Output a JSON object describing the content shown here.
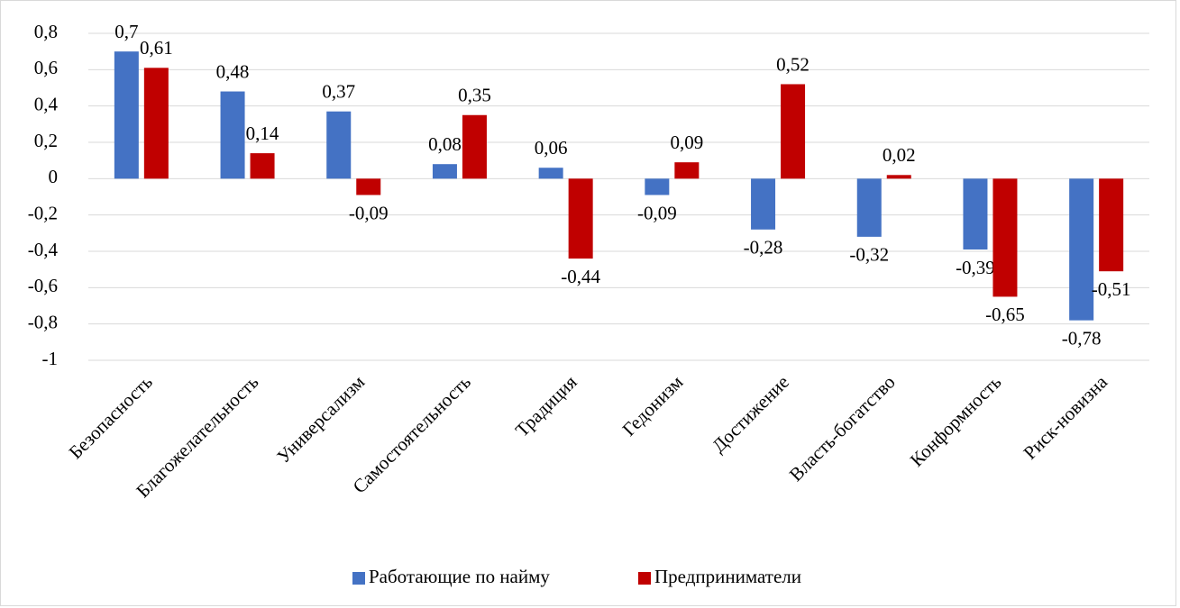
{
  "chart_data": {
    "type": "bar",
    "categories": [
      "Безопасность",
      "Благожелательность",
      "Универсализм",
      "Самостоятельность",
      "Традиция",
      "Гедонизм",
      "Достижение",
      "Власть-богатство",
      "Конформность",
      "Риск-новизна"
    ],
    "series": [
      {
        "name": "Работающие по найму",
        "color": "#4472c4",
        "values": [
          0.7,
          0.48,
          0.37,
          0.08,
          0.06,
          -0.09,
          -0.28,
          -0.32,
          -0.39,
          -0.78
        ],
        "value_labels": [
          "0,7",
          "0,48",
          "0,37",
          "0,08",
          "0,06",
          "-0,09",
          "-0,28",
          "-0,32",
          "-0,39",
          "-0,78"
        ]
      },
      {
        "name": "Предприниматели",
        "color": "#c00000",
        "values": [
          0.61,
          0.14,
          -0.09,
          0.35,
          -0.44,
          0.09,
          0.52,
          0.02,
          -0.65,
          -0.51
        ],
        "value_labels": [
          "0,61",
          "0,14",
          "-0,09",
          "0,35",
          "-0,44",
          "0,09",
          "0,52",
          "0,02",
          "-0,65",
          "-0,51"
        ]
      }
    ],
    "ylim": [
      -1,
      0.8
    ],
    "yticks": [
      {
        "value": 0.8,
        "label": "0,8"
      },
      {
        "value": 0.6,
        "label": "0,6"
      },
      {
        "value": 0.4,
        "label": "0,4"
      },
      {
        "value": 0.2,
        "label": "0,2"
      },
      0,
      {
        "value": -0.2,
        "label": "-0,2"
      },
      {
        "value": -0.4,
        "label": "-0,4"
      },
      {
        "value": -0.6,
        "label": "-0,6"
      },
      {
        "value": -0.8,
        "label": "-0,8"
      },
      -1
    ],
    "grid": true,
    "legend": "bottom"
  }
}
